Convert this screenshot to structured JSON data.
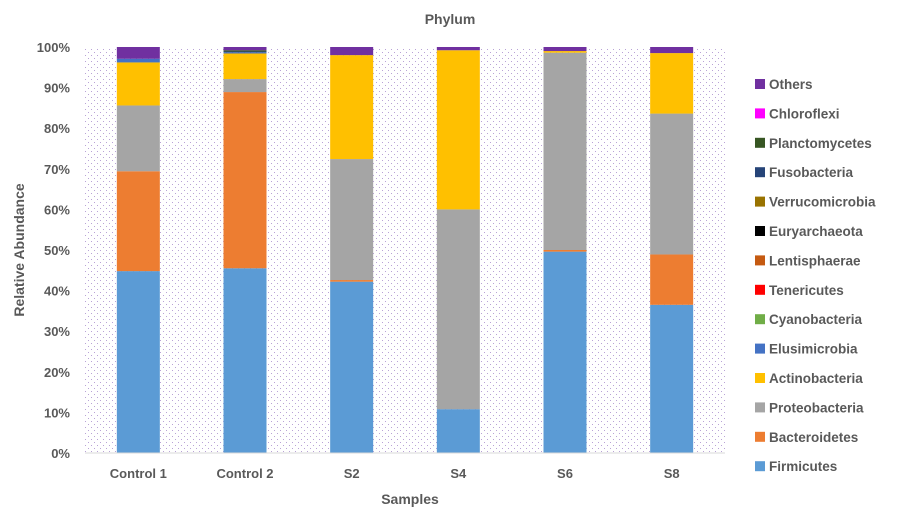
{
  "chart_data": {
    "type": "bar",
    "stacked": true,
    "title": "Phylum",
    "xlabel": "Samples",
    "ylabel": "Relative Abundance",
    "ylim": [
      0,
      100
    ],
    "y_ticks": [
      "0%",
      "10%",
      "20%",
      "30%",
      "40%",
      "50%",
      "60%",
      "70%",
      "80%",
      "90%",
      "100%"
    ],
    "categories": [
      "Control 1",
      "Control 2",
      "S2",
      "S4",
      "S6",
      "S8"
    ],
    "legend_position": "right",
    "series": [
      {
        "name": "Firmicutes",
        "color": "#5B9BD5",
        "values": [
          44.8,
          45.5,
          42.2,
          10.8,
          49.6,
          36.5
        ]
      },
      {
        "name": "Bacteroidetes",
        "color": "#ED7D31",
        "values": [
          24.6,
          43.4,
          0.4,
          0,
          0.4,
          12.4
        ]
      },
      {
        "name": "Proteobacteria",
        "color": "#A5A5A5",
        "values": [
          16.2,
          3.2,
          29.8,
          49.2,
          48.6,
          34.7
        ]
      },
      {
        "name": "Actinobacteria",
        "color": "#FFC000",
        "values": [
          10.6,
          6.3,
          25.6,
          39.2,
          0.4,
          14.9
        ]
      },
      {
        "name": "Elusimicrobia",
        "color": "#4472C4",
        "values": [
          0.9,
          0.3,
          0,
          0,
          0,
          0
        ]
      },
      {
        "name": "Cyanobacteria",
        "color": "#70AD47",
        "values": [
          0,
          0,
          0,
          0,
          0,
          0
        ]
      },
      {
        "name": "Tenericutes",
        "color": "#FF0000",
        "values": [
          0,
          0,
          0,
          0,
          0,
          0
        ]
      },
      {
        "name": "Lentisphaerae",
        "color": "#C55A11",
        "values": [
          0,
          0,
          0,
          0,
          0,
          0
        ]
      },
      {
        "name": "Euryarchaeota",
        "color": "#000000",
        "values": [
          0,
          0,
          0,
          0,
          0,
          0
        ]
      },
      {
        "name": "Verrucomicrobia",
        "color": "#997300",
        "values": [
          0,
          0,
          0,
          0,
          0,
          0
        ]
      },
      {
        "name": "Fusobacteria",
        "color": "#264478",
        "values": [
          0,
          0.2,
          0,
          0,
          0,
          0
        ]
      },
      {
        "name": "Planctomycetes",
        "color": "#375623",
        "values": [
          0,
          0.3,
          0,
          0,
          0,
          0
        ]
      },
      {
        "name": "Chloroflexi",
        "color": "#FF00FF",
        "values": [
          0,
          0,
          0,
          0,
          0,
          0
        ]
      },
      {
        "name": "Others",
        "color": "#7030A0",
        "values": [
          2.9,
          0.8,
          2.0,
          0.8,
          1.0,
          1.5
        ]
      }
    ]
  }
}
